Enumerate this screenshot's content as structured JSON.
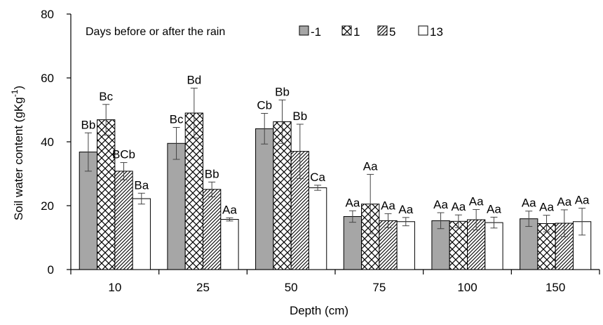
{
  "chart_data": {
    "type": "bar",
    "title": "",
    "legend_title": "Days before or after the rain",
    "xlabel": "Depth (cm)",
    "ylabel": "Soil water content (gKg",
    "ylabel_sup": "-1",
    "ylabel_tail": ")",
    "ylim": [
      0,
      80
    ],
    "yticks": [
      "0",
      "20",
      "40",
      "60",
      "80"
    ],
    "categories": [
      "10",
      "25",
      "50",
      "75",
      "100",
      "150"
    ],
    "legend_position": "top-right",
    "colors": {
      "gray": "#a6a6a6",
      "line": "#000000",
      "white": "#ffffff"
    },
    "series": [
      {
        "name": "-1",
        "pattern": "solid-gray",
        "values": [
          36.8,
          39.5,
          44.1,
          16.6,
          15.3,
          15.9
        ],
        "errors": [
          6.0,
          5.0,
          4.8,
          1.8,
          2.5,
          2.4
        ],
        "labels": [
          "Bb",
          "Bc",
          "Cb",
          "Aa",
          "Aa",
          "Aa"
        ]
      },
      {
        "name": "1",
        "pattern": "crosshatch",
        "values": [
          46.9,
          49.0,
          46.3,
          20.5,
          15.1,
          14.4
        ],
        "errors": [
          4.8,
          7.8,
          6.8,
          9.3,
          2.0,
          2.6
        ],
        "labels": [
          "Bc",
          "Bd",
          "Bb",
          "Aa",
          "Aa",
          "Aa"
        ]
      },
      {
        "name": "5",
        "pattern": "diagonal",
        "values": [
          30.8,
          25.1,
          37.0,
          15.3,
          15.6,
          14.5
        ],
        "errors": [
          2.7,
          2.3,
          8.5,
          2.2,
          3.2,
          4.2
        ],
        "labels": [
          "BCb",
          "Bb",
          "Bb",
          "Aa",
          "Aa",
          "Aa"
        ]
      },
      {
        "name": "13",
        "pattern": "white",
        "values": [
          22.2,
          15.7,
          25.6,
          15.0,
          14.7,
          15.0
        ],
        "errors": [
          1.7,
          0.5,
          0.8,
          1.3,
          1.7,
          4.2
        ],
        "labels": [
          "Ba",
          "Aa",
          "Ca",
          "Aa",
          "Aa",
          "Aa"
        ]
      }
    ]
  }
}
